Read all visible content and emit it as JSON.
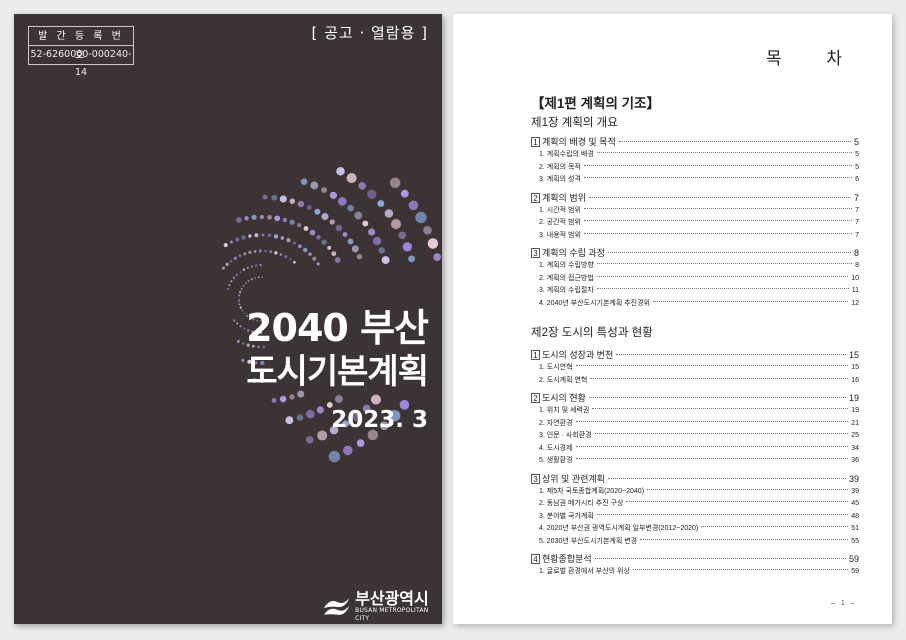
{
  "cover": {
    "reg_title": "발 간 등 록 번 호",
    "reg_number": "52-6260000-000240-14",
    "notice": "[ 공고 · 열람용 ]",
    "title_line1": "2040 부산",
    "title_line2": "도시기본계획",
    "date": "2023. 3",
    "logo_name": "부산광역시",
    "logo_sub": "BUSAN METROPOLITAN CITY",
    "background_color": "#3c3434",
    "dot_colors": [
      "#9c86d8",
      "#89a8de",
      "#c8c0e6",
      "#e6c8d8",
      "#b196e2"
    ]
  },
  "toc": {
    "title": "목 차",
    "part": "【제1편 계획의 기조】",
    "chapters": [
      {
        "title": "제1장 계획의 개요",
        "sections": [
          {
            "num": "1",
            "title": "계획의 배경 및 목적",
            "page": "5",
            "items": [
              {
                "title": "1. 계획수립의 배경",
                "page": "5"
              },
              {
                "title": "2. 계획의 목적",
                "page": "5"
              },
              {
                "title": "3. 계획의 성격",
                "page": "6"
              }
            ]
          },
          {
            "num": "2",
            "title": "계획의 범위",
            "page": "7",
            "items": [
              {
                "title": "1. 시간적 범위",
                "page": "7"
              },
              {
                "title": "2. 공간적 범위",
                "page": "7"
              },
              {
                "title": "3. 내용적 범위",
                "page": "7"
              }
            ]
          },
          {
            "num": "3",
            "title": "계획의 수립 과정",
            "page": "8",
            "items": [
              {
                "title": "1. 계획의 수립방향",
                "page": "8"
              },
              {
                "title": "2. 계획의 접근방법",
                "page": "10"
              },
              {
                "title": "3. 계획의 수립절차",
                "page": "11"
              },
              {
                "title": "4. 2040년 부산도시기본계획 추진경위",
                "page": "12"
              }
            ]
          }
        ]
      },
      {
        "title": "제2장 도시의 특성과 현황",
        "sections": [
          {
            "num": "1",
            "title": "도시의 성장과 변천",
            "page": "15",
            "items": [
              {
                "title": "1. 도시연혁",
                "page": "15"
              },
              {
                "title": "2. 도시계획 연혁",
                "page": "16"
              }
            ]
          },
          {
            "num": "2",
            "title": "도시의 현황",
            "page": "19",
            "items": [
              {
                "title": "1. 위치 및 세력권",
                "page": "19"
              },
              {
                "title": "2. 자연환경",
                "page": "21"
              },
              {
                "title": "3. 인문 · 사회환경",
                "page": "25"
              },
              {
                "title": "4. 도시경제",
                "page": "34"
              },
              {
                "title": "5. 생활환경",
                "page": "36"
              }
            ]
          },
          {
            "num": "3",
            "title": "상위 및 관련계획",
            "page": "39",
            "items": [
              {
                "title": "1. 제5차 국토종합계획(2020~2040)",
                "page": "39"
              },
              {
                "title": "2. 동남권 메가시티 추진 구상",
                "page": "45"
              },
              {
                "title": "3. 분야별 국가계획",
                "page": "48"
              },
              {
                "title": "4. 2020년 부산권 광역도시계획 일부변경(2012~2020)",
                "page": "51"
              },
              {
                "title": "5. 2030년 부산도시기본계획 변경",
                "page": "55"
              }
            ]
          },
          {
            "num": "4",
            "title": "현황종합분석",
            "page": "59",
            "items": [
              {
                "title": "1. 글로벌 환경에서 부산의 위상",
                "page": "59"
              }
            ]
          }
        ]
      }
    ],
    "page_number": "– 1 –"
  }
}
